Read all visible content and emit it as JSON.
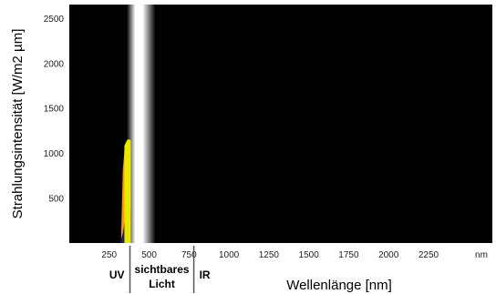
{
  "chart_data": {
    "type": "area",
    "title": "",
    "xlabel": "Wellenlänge [nm]",
    "ylabel": "Strahlungsintensität [W/m2 µm]",
    "xlim": [
      0,
      2650
    ],
    "ylim": [
      0,
      2650
    ],
    "x_unit_tick": "nm",
    "xticks": [
      250,
      500,
      750,
      1000,
      1250,
      1500,
      1750,
      2000,
      2250
    ],
    "yticks": [
      500,
      1000,
      1500,
      2000,
      2500
    ],
    "grid": false,
    "background": "#000000",
    "regions": [
      {
        "label": "UV",
        "from": 0,
        "to": 380
      },
      {
        "label": "sichtbares",
        "label2": "Licht",
        "from": 380,
        "to": 780
      },
      {
        "label": "IR",
        "from": 780,
        "to": 2650
      }
    ],
    "light_band": {
      "center": 450,
      "width": 180,
      "color": "#ffffff"
    },
    "series": [
      {
        "color": "#ff9900",
        "x": [
          325,
          335,
          345,
          355,
          365,
          375,
          385
        ],
        "y": [
          80,
          800,
          1020,
          1080,
          1100,
          1110,
          1120
        ]
      },
      {
        "color": "#1a1a66",
        "x": [
          325,
          335,
          345,
          355,
          365,
          375,
          385
        ],
        "y": [
          40,
          110,
          220,
          300,
          360,
          380,
          380
        ]
      },
      {
        "color": "#e8e800",
        "x": [
          345,
          355,
          365,
          375,
          385
        ],
        "y": [
          1080,
          1120,
          1150,
          1150,
          1140
        ]
      }
    ]
  }
}
